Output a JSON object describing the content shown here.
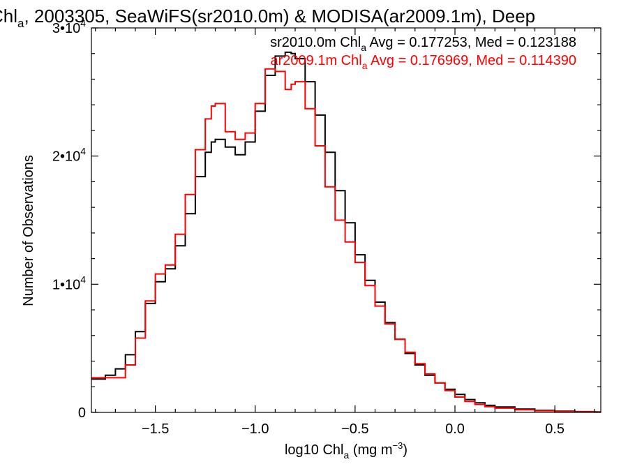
{
  "chart_data": {
    "type": "line",
    "title_parts": [
      "Chl",
      "a",
      ", 2003305, SeaWiFS(sr2010.0m) & MODISA(ar2009.1m), Deep"
    ],
    "xlabel_parts": [
      "log10 Chl",
      "a",
      " (mg m",
      "−3",
      ")"
    ],
    "ylabel": "Number of Observations",
    "xlim": [
      -1.82,
      0.73
    ],
    "ylim": [
      0,
      30000
    ],
    "grid": false,
    "x_ticks": [
      {
        "value": -1.5,
        "label": "−1.5"
      },
      {
        "value": -1.0,
        "label": "−1.0"
      },
      {
        "value": -0.5,
        "label": "−0.5"
      },
      {
        "value": 0.0,
        "label": "0.0"
      },
      {
        "value": 0.5,
        "label": "0.5"
      }
    ],
    "y_ticks": [
      {
        "value": 0,
        "label": "0",
        "exp": ""
      },
      {
        "value": 10000,
        "label": "1•10",
        "exp": "4"
      },
      {
        "value": 20000,
        "label": "2•10",
        "exp": "4"
      },
      {
        "value": 30000,
        "label": "3•10",
        "exp": "4"
      }
    ],
    "annotations": [
      {
        "pre": "sr2010.0m Chl",
        "sub": "a",
        "post": " Avg = 0.177253, Med = 0.123188",
        "color": "#000000"
      },
      {
        "pre": "ar2009.1m Chl",
        "sub": "a",
        "post": " Avg = 0.176969, Med = 0.114390",
        "color": "#ff0000"
      }
    ],
    "series": [
      {
        "color": "#000000",
        "x": [
          -1.82,
          -1.75,
          -1.7,
          -1.65,
          -1.6,
          -1.55,
          -1.5,
          -1.45,
          -1.4,
          -1.35,
          -1.3,
          -1.25,
          -1.22,
          -1.2,
          -1.15,
          -1.1,
          -1.05,
          -1.0,
          -0.95,
          -0.9,
          -0.85,
          -0.82,
          -0.8,
          -0.75,
          -0.7,
          -0.65,
          -0.6,
          -0.55,
          -0.5,
          -0.45,
          -0.4,
          -0.35,
          -0.3,
          -0.25,
          -0.2,
          -0.15,
          -0.1,
          -0.05,
          0.0,
          0.05,
          0.1,
          0.15,
          0.2,
          0.3,
          0.4,
          0.5,
          0.6,
          0.7
        ],
        "y": [
          2600,
          2900,
          3400,
          4500,
          6300,
          8500,
          10200,
          11200,
          13000,
          15500,
          18400,
          20300,
          21100,
          21300,
          20700,
          20100,
          21100,
          23500,
          26300,
          27800,
          28100,
          28000,
          27600,
          25800,
          23200,
          20300,
          17300,
          14800,
          12300,
          10300,
          8600,
          7000,
          5700,
          4600,
          3700,
          2900,
          2300,
          1800,
          1400,
          1000,
          750,
          550,
          420,
          260,
          160,
          100,
          60,
          40
        ]
      },
      {
        "color": "#ff0000",
        "x": [
          -1.82,
          -1.75,
          -1.7,
          -1.65,
          -1.6,
          -1.55,
          -1.5,
          -1.45,
          -1.4,
          -1.35,
          -1.3,
          -1.25,
          -1.22,
          -1.2,
          -1.15,
          -1.1,
          -1.05,
          -1.0,
          -0.95,
          -0.9,
          -0.85,
          -0.82,
          -0.8,
          -0.75,
          -0.7,
          -0.65,
          -0.6,
          -0.55,
          -0.5,
          -0.45,
          -0.4,
          -0.35,
          -0.3,
          -0.25,
          -0.2,
          -0.15,
          -0.1,
          -0.05,
          0.0,
          0.05,
          0.1,
          0.15,
          0.2,
          0.3,
          0.4,
          0.5,
          0.6,
          0.7
        ],
        "y": [
          2700,
          2700,
          2700,
          3700,
          5800,
          8700,
          10800,
          11500,
          13900,
          17000,
          20500,
          22900,
          23900,
          24100,
          21900,
          21300,
          21800,
          24100,
          26800,
          26600,
          25200,
          25600,
          25800,
          23700,
          20800,
          17600,
          15000,
          13300,
          11700,
          9900,
          8300,
          6900,
          5700,
          4700,
          3800,
          3000,
          2300,
          1700,
          1200,
          850,
          620,
          450,
          330,
          200,
          120,
          70,
          40,
          20
        ]
      }
    ]
  }
}
